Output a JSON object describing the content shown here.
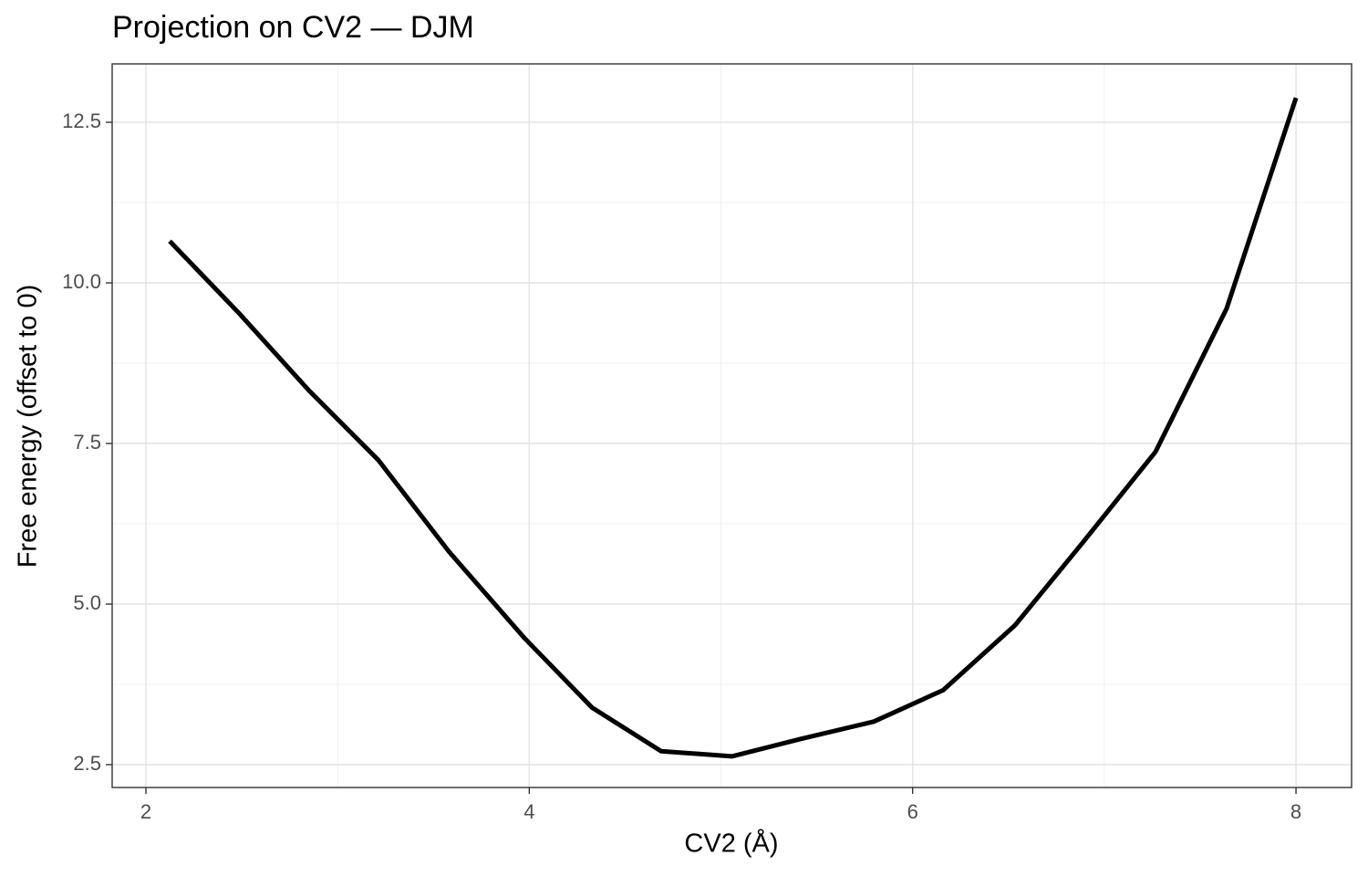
{
  "chart_data": {
    "type": "line",
    "title": "Projection on CV2 — DJM",
    "x_label": "CV2 (Å)",
    "y_label": "Free energy (offset to 0)",
    "x": [
      2.124,
      2.485,
      2.852,
      3.213,
      3.58,
      3.975,
      4.327,
      4.688,
      5.059,
      5.416,
      5.797,
      6.159,
      6.534,
      6.891,
      7.267,
      7.638,
      8.0
    ],
    "series": [
      {
        "name": "DJM",
        "color": "#000000",
        "values": [
          10.65,
          9.53,
          8.32,
          7.24,
          5.82,
          4.47,
          3.39,
          2.71,
          2.63,
          2.9,
          3.17,
          3.66,
          4.67,
          5.97,
          7.37,
          9.6,
          12.88
        ]
      }
    ],
    "xlim": [
      1.824,
      8.29
    ],
    "ylim": [
      2.145,
      13.409
    ],
    "xticks": [
      2,
      4,
      6,
      8
    ],
    "yticks": [
      2.5,
      {
        "value": 5,
        "label": "5.0"
      },
      7.5,
      {
        "value": 10,
        "label": "10.0"
      },
      12.5
    ],
    "grid": true,
    "minor_grid": true
  }
}
